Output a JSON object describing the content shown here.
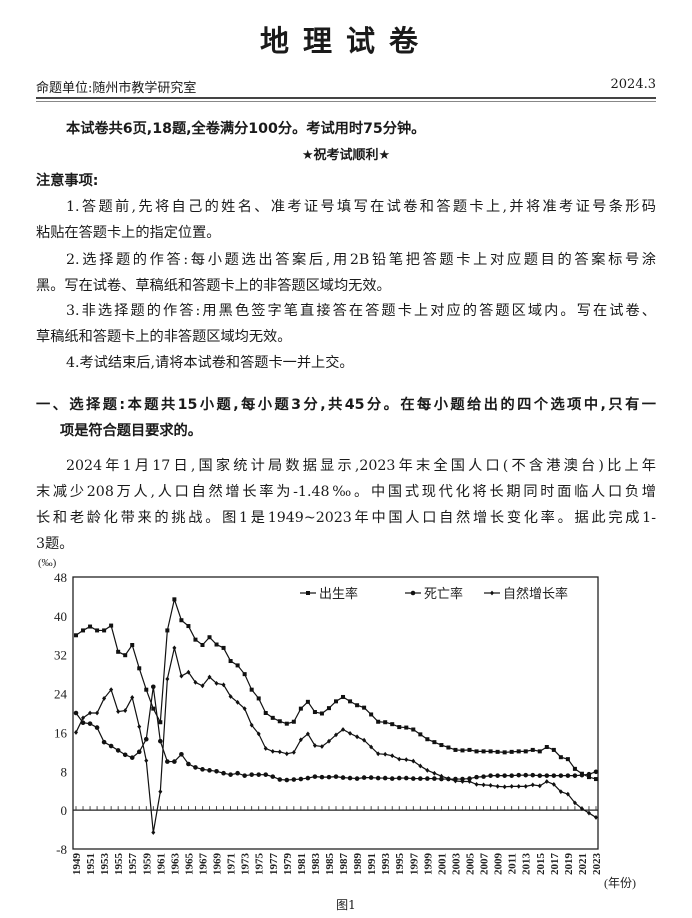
{
  "header": {
    "title": "地理试卷",
    "unit": "命题单位:随州市教学研究室",
    "date": "2024.3"
  },
  "intro": "本试卷共6页,18题,全卷满分100分。考试用时75分钟。",
  "wish": "★祝考试顺利★",
  "notice": {
    "heading": "注意事项:",
    "lines": [
      "1.答题前,先将自己的姓名、准考证号填写在试卷和答题卡上,并将准考证号条形码",
      "粘贴在答题卡上的指定位置。",
      "2.选择题的作答:每小题选出答案后,用2B铅笔把答题卡上对应题目的答案标号涂",
      "黑。写在试卷、草稿纸和答题卡上的非答题区域均无效。",
      "3.非选择题的作答:用黑色签字笔直接答在答题卡上对应的答题区域内。写在试卷、",
      "草稿纸和答题卡上的非答题区域均无效。",
      "4.考试结束后,请将本试卷和答题卡一并上交。"
    ]
  },
  "section": {
    "lines": [
      "一、选择题:本题共15小题,每小题3分,共45分。在每小题给出的四个选项中,只有一",
      "项是符合题目要求的。"
    ]
  },
  "passage": {
    "lines": [
      "2024年1月17日,国家统计局数据显示,2023年末全国人口(不含港澳台)比上年",
      "末减少208万人,人口自然增长率为-1.48‰。中国式现代化将长期同时面临人口负增",
      "长和老龄化带来的挑战。图1是1949~2023年中国人口自然增长变化率。据此完成1-",
      "3题。"
    ]
  },
  "figure_caption": "图1",
  "chart_data": {
    "type": "line",
    "ylabel": "(‰)",
    "xlabel": "(年份)",
    "ylim": [
      -8,
      48
    ],
    "yticks": [
      -8,
      0,
      8,
      16,
      24,
      32,
      40,
      48
    ],
    "x_start": 1949,
    "x_end": 2023,
    "xtick_labels": [
      "1949",
      "1951",
      "1953",
      "1955",
      "1957",
      "1959",
      "1961",
      "1963",
      "1965",
      "1967",
      "1969",
      "1971",
      "1973",
      "1975",
      "1977",
      "1979",
      "1981",
      "1983",
      "1985",
      "1987",
      "1989",
      "1991",
      "1993",
      "1995",
      "1997",
      "1999",
      "2001",
      "2003",
      "2005",
      "2007",
      "2009",
      "2011",
      "2013",
      "2015",
      "2017",
      "2019",
      "2021",
      "2023"
    ],
    "legend_position": "top-right",
    "series": [
      {
        "name": "出生率",
        "marker": "square",
        "values": [
          36,
          37,
          37.8,
          37,
          37,
          38,
          32.6,
          31.9,
          34,
          29.2,
          24.8,
          20.9,
          18.1,
          37,
          43.4,
          39.1,
          37.9,
          35.1,
          34,
          35.6,
          34.1,
          33.4,
          30.7,
          29.8,
          28,
          24.8,
          23,
          20,
          19,
          18.3,
          17.8,
          18.2,
          20.9,
          22.3,
          20.2,
          19.9,
          21,
          22.4,
          23.3,
          22.4,
          21.6,
          21.1,
          19.7,
          18.2,
          18.1,
          17.7,
          17.1,
          17,
          16.6,
          15.6,
          14.6,
          14,
          13.4,
          12.9,
          12.4,
          12.3,
          12.4,
          12.1,
          12.1,
          12.1,
          12,
          11.9,
          12,
          12.1,
          12.1,
          12.4,
          12.1,
          13,
          12.4,
          10.9,
          10.5,
          8.5,
          7.5,
          6.8,
          6.4
        ]
      },
      {
        "name": "死亡率",
        "marker": "circle",
        "values": [
          20,
          18,
          17.8,
          17,
          14,
          13.2,
          12.3,
          11.4,
          10.8,
          12,
          14.6,
          25.4,
          14.2,
          10,
          10,
          11.5,
          9.5,
          8.8,
          8.4,
          8.2,
          8,
          7.6,
          7.3,
          7.6,
          7.1,
          7.3,
          7.3,
          7.3,
          6.9,
          6.3,
          6.2,
          6.3,
          6.4,
          6.6,
          6.9,
          6.8,
          6.8,
          6.9,
          6.7,
          6.6,
          6.5,
          6.7,
          6.7,
          6.6,
          6.6,
          6.5,
          6.6,
          6.6,
          6.5,
          6.5,
          6.5,
          6.5,
          6.4,
          6.4,
          6.4,
          6.4,
          6.5,
          6.8,
          6.9,
          7.1,
          7.1,
          7.1,
          7.1,
          7.2,
          7.2,
          7.2,
          7.1,
          7.1,
          7.1,
          7.1,
          7.1,
          7.1,
          7.2,
          7.4,
          7.9
        ]
      },
      {
        "name": "自然增长率",
        "marker": "diamond",
        "values": [
          16,
          19,
          20,
          20,
          23,
          24.8,
          20.3,
          20.5,
          23.2,
          17.2,
          10.2,
          -4.6,
          3.8,
          27,
          33.4,
          27.6,
          28.4,
          26.3,
          25.6,
          27.4,
          26.1,
          25.8,
          23.4,
          22.2,
          20.9,
          17.5,
          15.7,
          12.7,
          12.1,
          12,
          11.6,
          11.9,
          14.5,
          15.7,
          13.3,
          13.1,
          14.2,
          15.5,
          16.6,
          15.8,
          15.1,
          14.4,
          13,
          11.6,
          11.5,
          11.2,
          10.5,
          10.4,
          10.1,
          9.1,
          8.2,
          7.6,
          7,
          6.5,
          6,
          5.9,
          5.9,
          5.3,
          5.2,
          5.1,
          4.9,
          4.8,
          4.9,
          4.9,
          4.9,
          5.2,
          5,
          5.9,
          5.3,
          3.8,
          3.3,
          1.5,
          0.3,
          -0.6,
          -1.5
        ]
      }
    ]
  }
}
